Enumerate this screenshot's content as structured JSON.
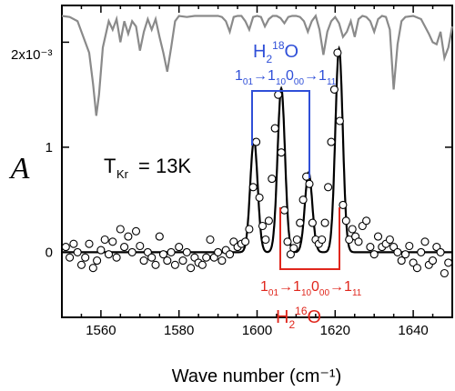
{
  "chart_data": {
    "type": "line",
    "xlabel": "Wave number (cm⁻¹)",
    "ylabel": "A",
    "xlim": [
      1550,
      1650
    ],
    "ylim": [
      -0.62,
      2.35
    ],
    "x_ticks": [
      1560,
      1580,
      1600,
      1620,
      1640
    ],
    "y_ticks": [
      0,
      1
    ],
    "y_tick_labels": [
      "0",
      "1"
    ],
    "scale_annotation": "2x10⁻³",
    "temperature_label": "T",
    "temperature_subscript": "Kr",
    "temperature_value": "= 13K",
    "grid": false,
    "legend": "none",
    "colors": {
      "fit": "#000000",
      "data_points": "#000000",
      "reference_spectrum": "#8a8a8a",
      "h2o18_assignments": "#2f4fd8",
      "h2o16_assignments": "#e0261c"
    },
    "assignments": {
      "h2o18": {
        "molecule": "H2 18O",
        "transitions": [
          "1₀₁→1₁₀",
          "0₀₀→1₁₁"
        ],
        "line_positions": [
          1599,
          1613.3
        ]
      },
      "h2o16": {
        "molecule": "H2 16O",
        "transitions": [
          "1₀₁→1₁₀",
          "0₀₀→1₁₁"
        ],
        "line_positions": [
          1606.5,
          1621
        ]
      }
    },
    "fit_peaks": [
      {
        "center": 1599.2,
        "height": 1.07,
        "width": 0.95
      },
      {
        "center": 1606.2,
        "height": 1.56,
        "width": 0.95
      },
      {
        "center": 1613.2,
        "height": 0.76,
        "width": 0.95
      },
      {
        "center": 1621.0,
        "height": 1.94,
        "width": 0.95
      }
    ],
    "data_points": {
      "x": [
        1551,
        1552,
        1553,
        1554,
        1555,
        1556,
        1557,
        1558,
        1559,
        1560,
        1561,
        1562,
        1563,
        1564,
        1565,
        1566,
        1567,
        1568,
        1569,
        1570,
        1571,
        1572,
        1573,
        1574,
        1575,
        1576,
        1577,
        1578,
        1579,
        1580,
        1581,
        1582,
        1583,
        1584,
        1585,
        1586,
        1587,
        1588,
        1589,
        1590,
        1591,
        1592,
        1593,
        1594,
        1595,
        1596,
        1597,
        1598,
        1599,
        1599.8,
        1600.6,
        1601.4,
        1602.2,
        1603,
        1603.8,
        1604.6,
        1605.4,
        1606.2,
        1607,
        1607.8,
        1608.6,
        1609.4,
        1610.2,
        1611,
        1611.8,
        1612.6,
        1613.4,
        1614.2,
        1615,
        1615.8,
        1616.6,
        1617.4,
        1618.2,
        1619,
        1619.8,
        1620.6,
        1621.2,
        1622,
        1622.8,
        1623.6,
        1624.4,
        1625.2,
        1626,
        1627,
        1628,
        1629,
        1630,
        1631,
        1632,
        1633,
        1634,
        1635,
        1636,
        1637,
        1638,
        1639,
        1640,
        1641,
        1642,
        1643,
        1644,
        1645,
        1646,
        1647,
        1648,
        1649
      ],
      "y": [
        0.05,
        -0.05,
        0.08,
        0.0,
        -0.12,
        -0.05,
        0.08,
        -0.15,
        -0.08,
        0.02,
        0.12,
        -0.02,
        0.1,
        -0.05,
        0.22,
        0.05,
        0.15,
        0.0,
        0.2,
        0.06,
        -0.08,
        0.0,
        -0.05,
        -0.12,
        0.15,
        -0.02,
        -0.08,
        0.0,
        -0.12,
        0.05,
        -0.08,
        0.0,
        -0.15,
        -0.05,
        -0.1,
        -0.12,
        -0.05,
        0.12,
        -0.05,
        0.0,
        -0.08,
        0.02,
        -0.02,
        0.1,
        0.05,
        0.08,
        0.1,
        0.22,
        0.62,
        1.05,
        0.52,
        0.25,
        0.12,
        0.3,
        0.7,
        1.18,
        1.5,
        0.95,
        0.4,
        0.1,
        -0.02,
        0.04,
        0.12,
        0.28,
        0.5,
        0.72,
        0.65,
        0.28,
        0.12,
        0.08,
        0.12,
        0.28,
        0.62,
        1.05,
        1.55,
        1.9,
        1.25,
        0.45,
        0.3,
        0.12,
        0.22,
        0.15,
        0.1,
        0.25,
        0.3,
        0.05,
        -0.02,
        0.15,
        0.05,
        0.08,
        0.12,
        0.05,
        0.0,
        -0.08,
        -0.02,
        0.06,
        -0.1,
        -0.15,
        0.0,
        0.1,
        -0.12,
        -0.08,
        0.05,
        0.0,
        -0.2,
        -0.1
      ]
    },
    "reference_spectrum": {
      "x": [
        1550,
        1552,
        1554,
        1555.5,
        1557,
        1558,
        1558.8,
        1559.5,
        1560.5,
        1562,
        1563,
        1564,
        1565,
        1566,
        1567,
        1568,
        1569,
        1570,
        1571,
        1572,
        1573,
        1574,
        1575,
        1576,
        1577,
        1578,
        1579,
        1580,
        1582,
        1584,
        1586,
        1588,
        1590,
        1591,
        1592,
        1593,
        1594,
        1595,
        1596,
        1597,
        1598,
        1599,
        1600,
        1601,
        1602,
        1603,
        1604,
        1605,
        1606,
        1607,
        1608,
        1609,
        1610,
        1611,
        1612,
        1613,
        1614,
        1615,
        1616,
        1617,
        1618,
        1619,
        1620,
        1621,
        1622,
        1623,
        1624,
        1625,
        1626,
        1627,
        1628,
        1629,
        1630,
        1631,
        1632,
        1633,
        1634,
        1635,
        1636,
        1637,
        1638,
        1640,
        1642,
        1644,
        1645,
        1646,
        1647,
        1648,
        1649,
        1650
      ],
      "y": [
        2.25,
        2.24,
        2.2,
        2.05,
        1.9,
        1.6,
        1.3,
        1.5,
        1.95,
        2.2,
        2.12,
        2.22,
        2.0,
        2.2,
        2.08,
        2.2,
        2.15,
        1.92,
        2.1,
        2.22,
        2.12,
        2.22,
        2.05,
        1.9,
        1.72,
        1.95,
        2.2,
        2.25,
        2.24,
        2.25,
        2.25,
        2.25,
        2.25,
        2.24,
        2.2,
        2.1,
        2.24,
        2.25,
        2.25,
        2.2,
        2.12,
        2.24,
        2.25,
        2.24,
        2.15,
        2.22,
        2.25,
        2.25,
        2.23,
        2.18,
        2.24,
        2.25,
        2.25,
        2.24,
        2.2,
        2.1,
        2.2,
        2.25,
        2.12,
        1.88,
        2.1,
        2.2,
        2.24,
        2.18,
        2.05,
        2.1,
        2.2,
        2.05,
        2.22,
        2.25,
        2.24,
        2.2,
        2.1,
        2.22,
        2.25,
        2.24,
        2.12,
        1.55,
        1.98,
        2.2,
        2.24,
        2.25,
        2.22,
        2.08,
        2.0,
        1.98,
        2.1,
        1.85,
        1.95,
        2.15
      ]
    }
  }
}
